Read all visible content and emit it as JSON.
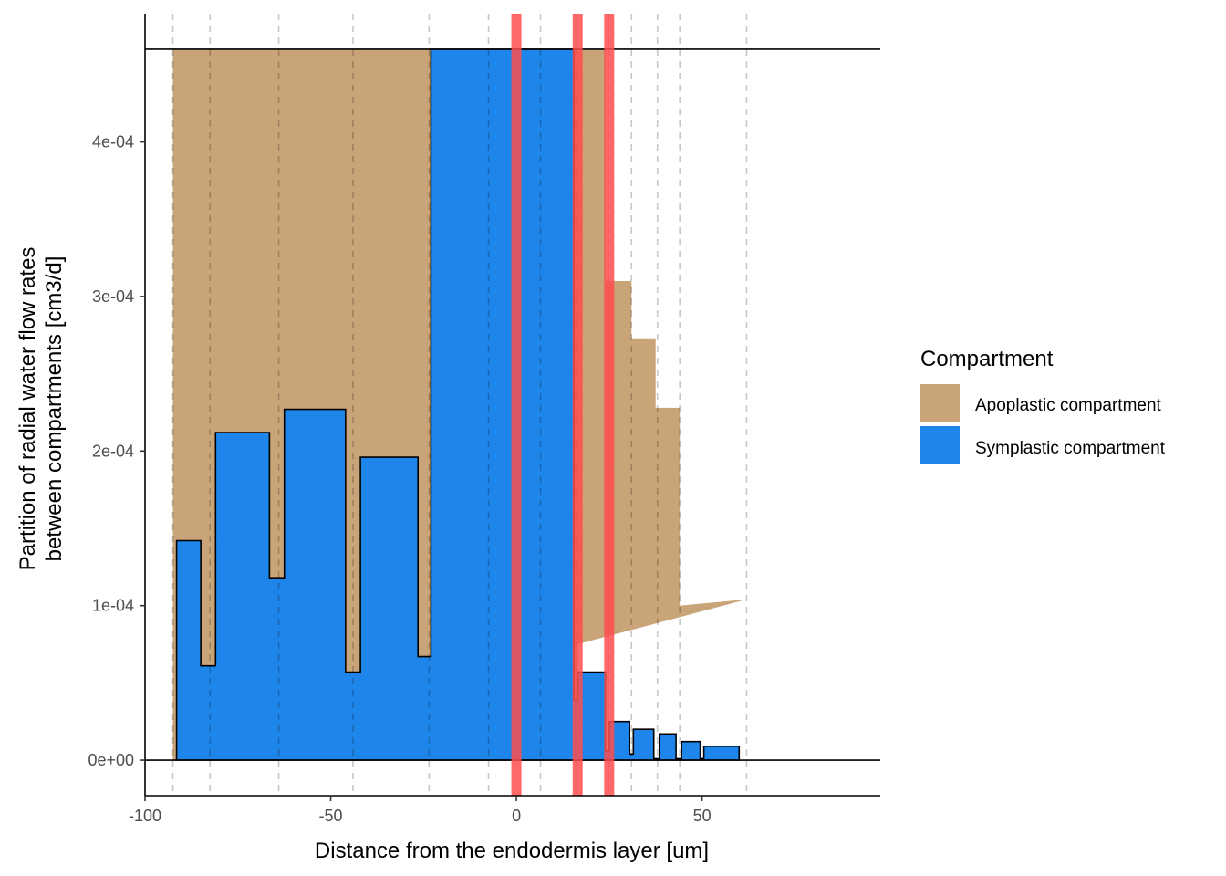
{
  "chart_data": {
    "type": "area",
    "title": "",
    "xlabel": "Distance from the endodermis layer [um]",
    "ylabel_lines": [
      "Partition of radial water flow rates",
      "between compartments [cm3/d]"
    ],
    "xlim": [
      -100,
      98
    ],
    "ylim": [
      -2.3e-05,
      0.000483
    ],
    "x_ticks": [
      -100,
      -50,
      0,
      50
    ],
    "x_tick_labels": [
      "-100",
      "-50",
      "0",
      "50"
    ],
    "y_ticks": [
      0,
      0.0001,
      0.0002,
      0.0003,
      0.0004
    ],
    "y_tick_labels": [
      "0e+00",
      "1e-04",
      "2e-04",
      "3e-04",
      "4e-04"
    ],
    "grid": false,
    "horizontal_reference_lines": [
      0,
      0.00046
    ],
    "layer_boundaries": [
      -92.5,
      -82.5,
      -64,
      -44,
      -23.5,
      -7.5,
      6.5,
      16,
      25,
      31,
      38,
      44,
      62
    ],
    "highlight_lines": [
      0,
      16.5,
      25
    ],
    "highlight_color": "#ff4d4d",
    "legend": {
      "title": "Compartment",
      "position": "right",
      "entries": [
        {
          "label": "Apoplastic compartment",
          "color": "#c9a478"
        },
        {
          "label": "Symplastic compartment",
          "color": "#1e85ea"
        }
      ]
    },
    "series": [
      {
        "name": "Apoplastic compartment",
        "color": "#c9a478",
        "polygon": [
          [
            -92.5,
            0
          ],
          [
            -92.5,
            0.00046
          ],
          [
            24,
            0.00046
          ],
          [
            24,
            0.00031
          ],
          [
            31,
            0.00031
          ],
          [
            31,
            0.000273
          ],
          [
            37.5,
            0.000273
          ],
          [
            37.5,
            0.000228
          ],
          [
            44,
            0.000228
          ],
          [
            44,
            0.0001
          ],
          [
            62,
            0.000104
          ],
          [
            16.5,
            7.5e-05
          ],
          [
            16.5,
            0
          ]
        ]
      },
      {
        "name": "Symplastic compartment",
        "color": "#1e85ea",
        "outline": true,
        "x": [
          -92,
          -91.5,
          -91.5,
          -85,
          -85,
          -81,
          -81,
          -66.5,
          -66.5,
          -62.5,
          -62.5,
          -46,
          -46,
          -42,
          -42,
          -26.5,
          -26.5,
          -23,
          -23,
          15.5,
          15.5,
          16.5,
          16.5,
          17.5,
          17.5,
          24,
          24,
          25,
          25,
          30.5,
          30.5,
          31.5,
          31.5,
          37,
          37,
          38.5,
          38.5,
          43,
          43,
          44.5,
          44.5,
          49.5,
          49.5,
          50.5,
          50.5,
          60,
          60
        ],
        "y": [
          0,
          0,
          0.000142,
          0.000142,
          6.1e-05,
          6.1e-05,
          0.000212,
          0.000212,
          0.000118,
          0.000118,
          0.000227,
          0.000227,
          5.7e-05,
          5.7e-05,
          0.000196,
          0.000196,
          6.7e-05,
          6.7e-05,
          0.00046,
          0.00046,
          3.9e-05,
          3.9e-05,
          5.7e-05,
          5.7e-05,
          5.7e-05,
          5.7e-05,
          6e-06,
          6e-06,
          2.5e-05,
          2.5e-05,
          4e-06,
          4e-06,
          2e-05,
          2e-05,
          1e-06,
          1e-06,
          1.7e-05,
          1.7e-05,
          1e-06,
          1e-06,
          1.2e-05,
          1.2e-05,
          1e-06,
          1e-06,
          9e-06,
          9e-06,
          0
        ]
      }
    ]
  }
}
